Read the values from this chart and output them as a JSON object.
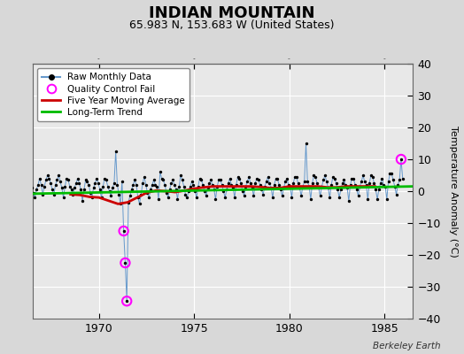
{
  "title": "INDIAN MOUNTAIN",
  "subtitle": "65.983 N, 153.683 W (United States)",
  "ylabel": "Temperature Anomaly (°C)",
  "credit": "Berkeley Earth",
  "xlim": [
    1966.5,
    1986.5
  ],
  "ylim": [
    -40,
    40
  ],
  "yticks": [
    -40,
    -30,
    -20,
    -10,
    0,
    10,
    20,
    30,
    40
  ],
  "xticks": [
    1970,
    1975,
    1980,
    1985
  ],
  "bg_color": "#d8d8d8",
  "plot_bg_color": "#e8e8e8",
  "grid_color": "#ffffff",
  "raw_color": "#6699cc",
  "raw_marker_color": "#000000",
  "moving_avg_color": "#cc0000",
  "trend_color": "#00bb00",
  "qc_fail_color": "#ff00ff",
  "raw_data": {
    "x": [
      1966.042,
      1966.125,
      1966.208,
      1966.292,
      1966.375,
      1966.458,
      1966.542,
      1966.625,
      1966.708,
      1966.792,
      1966.875,
      1966.958,
      1967.042,
      1967.125,
      1967.208,
      1967.292,
      1967.375,
      1967.458,
      1967.542,
      1967.625,
      1967.708,
      1967.792,
      1967.875,
      1967.958,
      1968.042,
      1968.125,
      1968.208,
      1968.292,
      1968.375,
      1968.458,
      1968.542,
      1968.625,
      1968.708,
      1968.792,
      1968.875,
      1968.958,
      1969.042,
      1969.125,
      1969.208,
      1969.292,
      1969.375,
      1969.458,
      1969.542,
      1969.625,
      1969.708,
      1969.792,
      1969.875,
      1969.958,
      1970.042,
      1970.125,
      1970.208,
      1970.292,
      1970.375,
      1970.458,
      1970.542,
      1970.625,
      1970.708,
      1970.792,
      1970.875,
      1970.958,
      1971.042,
      1971.125,
      1971.208,
      1971.292,
      1971.375,
      1971.458,
      1971.542,
      1971.625,
      1971.708,
      1971.792,
      1971.875,
      1971.958,
      1972.042,
      1972.125,
      1972.208,
      1972.292,
      1972.375,
      1972.458,
      1972.542,
      1972.625,
      1972.708,
      1972.792,
      1972.875,
      1972.958,
      1973.042,
      1973.125,
      1973.208,
      1973.292,
      1973.375,
      1973.458,
      1973.542,
      1973.625,
      1973.708,
      1973.792,
      1973.875,
      1973.958,
      1974.042,
      1974.125,
      1974.208,
      1974.292,
      1974.375,
      1974.458,
      1974.542,
      1974.625,
      1974.708,
      1974.792,
      1974.875,
      1974.958,
      1975.042,
      1975.125,
      1975.208,
      1975.292,
      1975.375,
      1975.458,
      1975.542,
      1975.625,
      1975.708,
      1975.792,
      1975.875,
      1975.958,
      1976.042,
      1976.125,
      1976.208,
      1976.292,
      1976.375,
      1976.458,
      1976.542,
      1976.625,
      1976.708,
      1976.792,
      1976.875,
      1976.958,
      1977.042,
      1977.125,
      1977.208,
      1977.292,
      1977.375,
      1977.458,
      1977.542,
      1977.625,
      1977.708,
      1977.792,
      1977.875,
      1977.958,
      1978.042,
      1978.125,
      1978.208,
      1978.292,
      1978.375,
      1978.458,
      1978.542,
      1978.625,
      1978.708,
      1978.792,
      1978.875,
      1978.958,
      1979.042,
      1979.125,
      1979.208,
      1979.292,
      1979.375,
      1979.458,
      1979.542,
      1979.625,
      1979.708,
      1979.792,
      1979.875,
      1979.958,
      1980.042,
      1980.125,
      1980.208,
      1980.292,
      1980.375,
      1980.458,
      1980.542,
      1980.625,
      1980.708,
      1980.792,
      1980.875,
      1980.958,
      1981.042,
      1981.125,
      1981.208,
      1981.292,
      1981.375,
      1981.458,
      1981.542,
      1981.625,
      1981.708,
      1981.792,
      1981.875,
      1981.958,
      1982.042,
      1982.125,
      1982.208,
      1982.292,
      1982.375,
      1982.458,
      1982.542,
      1982.625,
      1982.708,
      1982.792,
      1982.875,
      1982.958,
      1983.042,
      1983.125,
      1983.208,
      1983.292,
      1983.375,
      1983.458,
      1983.542,
      1983.625,
      1983.708,
      1983.792,
      1983.875,
      1983.958,
      1984.042,
      1984.125,
      1984.208,
      1984.292,
      1984.375,
      1984.458,
      1984.542,
      1984.625,
      1984.708,
      1984.792,
      1984.875,
      1984.958,
      1985.042,
      1985.125,
      1985.208,
      1985.292,
      1985.375,
      1985.458,
      1985.542,
      1985.625,
      1985.708,
      1985.792,
      1985.875,
      1985.958
    ],
    "y": [
      2.0,
      -1.5,
      1.5,
      3.5,
      3.0,
      1.0,
      -0.5,
      -2.0,
      0.5,
      2.0,
      4.0,
      2.0,
      -1.0,
      1.5,
      3.5,
      5.0,
      4.0,
      2.5,
      0.5,
      -1.0,
      2.0,
      3.5,
      5.0,
      3.0,
      1.0,
      -2.0,
      1.5,
      4.0,
      3.5,
      1.5,
      0.5,
      -1.0,
      1.0,
      2.5,
      4.0,
      2.5,
      0.5,
      -3.0,
      0.5,
      3.5,
      3.0,
      2.0,
      -0.5,
      -2.0,
      1.0,
      2.5,
      4.0,
      2.5,
      0.5,
      -2.0,
      1.5,
      4.0,
      3.5,
      1.5,
      0.0,
      -1.5,
      1.0,
      2.5,
      12.5,
      2.0,
      -1.0,
      -4.0,
      3.0,
      -12.5,
      -22.5,
      -34.5,
      -3.5,
      -1.5,
      0.5,
      2.0,
      3.5,
      2.0,
      -2.0,
      -4.0,
      -1.0,
      2.5,
      4.5,
      2.0,
      -0.5,
      -2.0,
      0.5,
      2.0,
      3.5,
      2.0,
      1.5,
      -2.5,
      6.0,
      4.0,
      3.5,
      2.0,
      -0.5,
      -2.0,
      0.5,
      2.5,
      3.5,
      2.0,
      0.5,
      -2.5,
      1.5,
      5.0,
      3.5,
      1.5,
      -1.0,
      -2.0,
      0.0,
      1.5,
      3.0,
      2.0,
      0.0,
      -2.0,
      1.5,
      4.0,
      3.5,
      2.0,
      0.0,
      -1.5,
      1.0,
      2.5,
      3.5,
      2.0,
      0.5,
      -2.5,
      1.5,
      3.5,
      3.5,
      2.0,
      0.0,
      -2.0,
      0.5,
      2.5,
      4.0,
      2.0,
      1.0,
      -2.0,
      2.0,
      4.5,
      4.0,
      2.5,
      0.0,
      -1.5,
      1.5,
      3.0,
      4.5,
      2.5,
      1.0,
      -1.5,
      2.5,
      4.0,
      3.5,
      2.0,
      0.5,
      -1.0,
      1.5,
      3.0,
      4.5,
      2.5,
      1.0,
      -2.0,
      2.0,
      4.0,
      4.0,
      2.0,
      0.5,
      -1.5,
      1.0,
      3.0,
      4.0,
      2.0,
      1.5,
      -2.0,
      2.5,
      4.5,
      4.5,
      2.5,
      1.0,
      -1.5,
      1.5,
      3.0,
      15.0,
      3.0,
      1.5,
      -2.5,
      2.5,
      5.0,
      4.5,
      2.5,
      1.0,
      -1.5,
      1.5,
      3.5,
      5.0,
      3.0,
      1.0,
      -2.0,
      2.0,
      4.5,
      4.0,
      2.5,
      0.5,
      -2.0,
      0.5,
      2.5,
      3.5,
      2.0,
      1.0,
      -3.0,
      2.0,
      4.0,
      4.0,
      2.0,
      0.5,
      -1.5,
      1.5,
      3.0,
      5.0,
      3.0,
      2.0,
      -2.5,
      2.5,
      5.0,
      4.5,
      2.5,
      0.5,
      -2.5,
      0.5,
      2.5,
      4.0,
      2.0,
      1.5,
      -2.5,
      3.0,
      5.5,
      5.5,
      3.5,
      1.5,
      -1.0,
      2.0,
      3.5,
      10.0,
      4.0
    ]
  },
  "qc_fail_points": {
    "x": [
      1971.292,
      1971.375,
      1971.458,
      1985.875
    ],
    "y": [
      -12.5,
      -22.5,
      -34.5,
      10.0
    ]
  },
  "moving_avg": {
    "x": [
      1968.5,
      1969.0,
      1969.5,
      1970.0,
      1970.5,
      1971.0,
      1971.5,
      1972.0,
      1972.5,
      1973.0,
      1973.5,
      1974.0,
      1974.5,
      1975.0,
      1975.5,
      1976.0,
      1976.5,
      1977.0,
      1977.5,
      1978.0,
      1978.5,
      1979.0,
      1979.5,
      1980.0,
      1980.5,
      1981.0,
      1981.5,
      1982.0,
      1982.5,
      1983.0,
      1983.5,
      1984.0,
      1984.5
    ],
    "y": [
      -1.0,
      -1.2,
      -1.8,
      -2.0,
      -3.0,
      -4.0,
      -3.5,
      -2.0,
      -0.5,
      0.2,
      0.0,
      -0.3,
      0.2,
      0.8,
      1.2,
      1.5,
      1.5,
      1.5,
      1.5,
      1.5,
      1.3,
      1.0,
      1.0,
      1.5,
      1.5,
      1.5,
      1.5,
      1.2,
      1.2,
      1.5,
      1.5,
      1.5,
      1.5
    ]
  },
  "trend": {
    "x": [
      1966.5,
      1986.5
    ],
    "y": [
      -0.8,
      1.5
    ]
  }
}
